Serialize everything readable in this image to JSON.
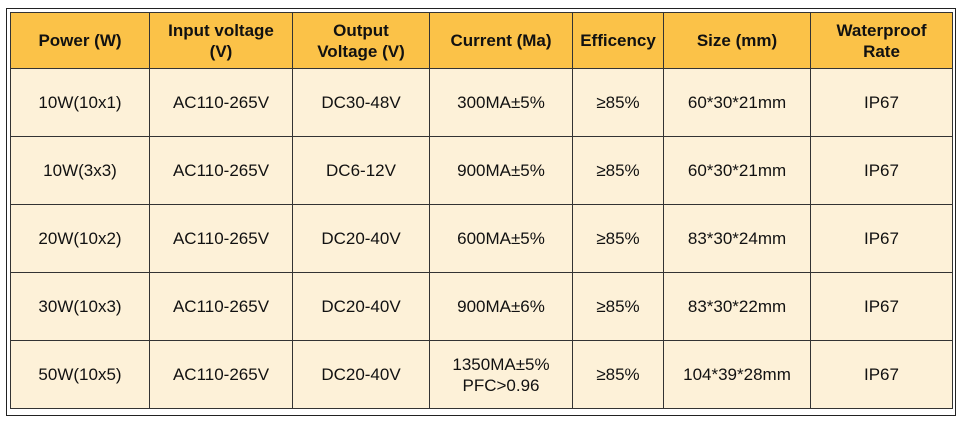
{
  "table": {
    "headers": [
      [
        "Power (W)"
      ],
      [
        "Input voltage",
        "(V)"
      ],
      [
        "Output",
        "Voltage (V)"
      ],
      [
        "Current (Ma)"
      ],
      [
        "Efficency"
      ],
      [
        "Size (mm)"
      ],
      [
        "Waterproof",
        "Rate"
      ]
    ],
    "rows": [
      [
        [
          "10W(10x1)"
        ],
        [
          "AC110-265V"
        ],
        [
          "DC30-48V"
        ],
        [
          "300MA±5%"
        ],
        [
          "≥85%"
        ],
        [
          "60*30*21mm"
        ],
        [
          "IP67"
        ]
      ],
      [
        [
          "10W(3x3)"
        ],
        [
          "AC110-265V"
        ],
        [
          "DC6-12V"
        ],
        [
          "900MA±5%"
        ],
        [
          "≥85%"
        ],
        [
          "60*30*21mm"
        ],
        [
          "IP67"
        ]
      ],
      [
        [
          "20W(10x2)"
        ],
        [
          "AC110-265V"
        ],
        [
          "DC20-40V"
        ],
        [
          "600MA±5%"
        ],
        [
          "≥85%"
        ],
        [
          "83*30*24mm"
        ],
        [
          "IP67"
        ]
      ],
      [
        [
          "30W(10x3)"
        ],
        [
          "AC110-265V"
        ],
        [
          "DC20-40V"
        ],
        [
          "900MA±6%"
        ],
        [
          "≥85%"
        ],
        [
          "83*30*22mm"
        ],
        [
          "IP67"
        ]
      ],
      [
        [
          "50W(10x5)"
        ],
        [
          "AC110-265V"
        ],
        [
          "DC20-40V"
        ],
        [
          "1350MA±5%",
          "PFC>0.96"
        ],
        [
          "≥85%"
        ],
        [
          "104*39*28mm"
        ],
        [
          "IP67"
        ]
      ]
    ]
  },
  "colors": {
    "header_bg": "#fbc248",
    "cell_bg": "#fdf1d8",
    "border": "#333333"
  }
}
